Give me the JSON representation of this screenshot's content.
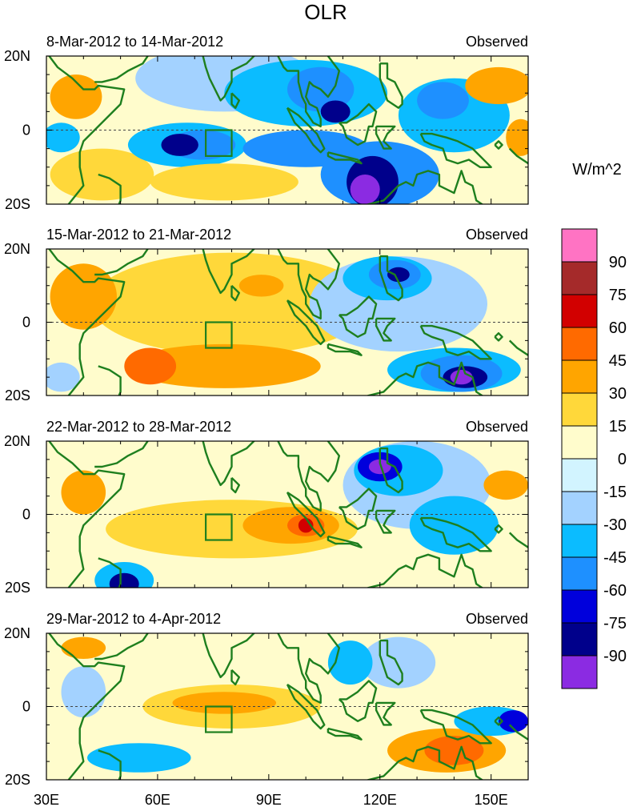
{
  "chart_data": {
    "type": "heatmap",
    "title": "OLR",
    "colorbar": {
      "unit_label": "W/m^2",
      "levels": [
        "90",
        "75",
        "60",
        "45",
        "30",
        "15",
        "0",
        "-15",
        "-30",
        "-45",
        "-60",
        "-75",
        "-90"
      ],
      "colors": [
        "#ff73c3",
        "#a52a2a",
        "#d20000",
        "#ff6a00",
        "#ffa500",
        "#ffd83a",
        "#fffccc",
        "#d2f4ff",
        "#a3d2ff",
        "#0bbcff",
        "#1e90ff",
        "#0000dc",
        "#00008b",
        "#8b2be2"
      ]
    },
    "xaxis": {
      "range": [
        30,
        160
      ],
      "ticks": [
        30,
        60,
        90,
        120,
        150
      ],
      "labels": [
        "30E",
        "60E",
        "90E",
        "120E",
        "150E"
      ]
    },
    "yaxis": {
      "range": [
        -20,
        20
      ],
      "ticks": [
        20,
        0,
        -20
      ],
      "labels": [
        "20N",
        "0",
        "20S"
      ]
    },
    "panels": [
      {
        "period": "8-Mar-2012 to 14-Mar-2012",
        "tag": "Observed",
        "anomalies": [
          {
            "lon": 38,
            "lat": 9,
            "rx": 7,
            "ry": 6,
            "value": 30
          },
          {
            "lon": 34,
            "lat": -2,
            "rx": 5,
            "ry": 4,
            "value": -30
          },
          {
            "lon": 45,
            "lat": -12,
            "rx": 14,
            "ry": 7,
            "value": 15
          },
          {
            "lon": 78,
            "lat": 14,
            "rx": 24,
            "ry": 9,
            "value": -15
          },
          {
            "lon": 68,
            "lat": -4,
            "rx": 16,
            "ry": 6,
            "value": -30
          },
          {
            "lon": 72,
            "lat": -4,
            "rx": 9,
            "ry": 4,
            "value": -45
          },
          {
            "lon": 66,
            "lat": -4,
            "rx": 5,
            "ry": 3,
            "value": -75
          },
          {
            "lon": 78,
            "lat": -14,
            "rx": 20,
            "ry": 5,
            "value": 15
          },
          {
            "lon": 100,
            "lat": 10,
            "rx": 22,
            "ry": 9,
            "value": -30
          },
          {
            "lon": 104,
            "lat": 11,
            "rx": 9,
            "ry": 6,
            "value": -45
          },
          {
            "lon": 108,
            "lat": 5,
            "rx": 4,
            "ry": 3,
            "value": -75
          },
          {
            "lon": 100,
            "lat": -5,
            "rx": 17,
            "ry": 5,
            "value": -45
          },
          {
            "lon": 120,
            "lat": -12,
            "rx": 16,
            "ry": 9,
            "value": -45
          },
          {
            "lon": 118,
            "lat": -14,
            "rx": 7,
            "ry": 7,
            "value": -75
          },
          {
            "lon": 116,
            "lat": -16,
            "rx": 4,
            "ry": 4,
            "value": -90
          },
          {
            "lon": 140,
            "lat": 4,
            "rx": 15,
            "ry": 10,
            "value": -30
          },
          {
            "lon": 137,
            "lat": 8,
            "rx": 7,
            "ry": 5,
            "value": -45
          },
          {
            "lon": 152,
            "lat": 12,
            "rx": 9,
            "ry": 5,
            "value": 30
          },
          {
            "lon": 158,
            "lat": -2,
            "rx": 4,
            "ry": 5,
            "value": 30
          }
        ]
      },
      {
        "period": "15-Mar-2012 to 21-Mar-2012",
        "tag": "Observed",
        "anomalies": [
          {
            "lon": 80,
            "lat": 5,
            "rx": 38,
            "ry": 14,
            "value": 15
          },
          {
            "lon": 40,
            "lat": 7,
            "rx": 9,
            "ry": 9,
            "value": 30
          },
          {
            "lon": 34,
            "lat": -15,
            "rx": 5,
            "ry": 4,
            "value": -15
          },
          {
            "lon": 78,
            "lat": -12,
            "rx": 26,
            "ry": 6,
            "value": 30
          },
          {
            "lon": 58,
            "lat": -12,
            "rx": 7,
            "ry": 5,
            "value": 45
          },
          {
            "lon": 88,
            "lat": 10,
            "rx": 6,
            "ry": 3,
            "value": 30
          },
          {
            "lon": 125,
            "lat": 5,
            "rx": 24,
            "ry": 13,
            "value": -15
          },
          {
            "lon": 122,
            "lat": 12,
            "rx": 12,
            "ry": 6,
            "value": -30
          },
          {
            "lon": 124,
            "lat": 13,
            "rx": 7,
            "ry": 4,
            "value": -45
          },
          {
            "lon": 125,
            "lat": 13,
            "rx": 3,
            "ry": 2,
            "value": -75
          },
          {
            "lon": 140,
            "lat": -13,
            "rx": 18,
            "ry": 6,
            "value": -30
          },
          {
            "lon": 142,
            "lat": -14,
            "rx": 11,
            "ry": 5,
            "value": -45
          },
          {
            "lon": 143,
            "lat": -15,
            "rx": 6,
            "ry": 3,
            "value": -75
          },
          {
            "lon": 142,
            "lat": -15,
            "rx": 3,
            "ry": 2,
            "value": -90
          }
        ]
      },
      {
        "period": "22-Mar-2012 to 28-Mar-2012",
        "tag": "Observed",
        "anomalies": [
          {
            "lon": 80,
            "lat": -4,
            "rx": 34,
            "ry": 8,
            "value": 15
          },
          {
            "lon": 96,
            "lat": -3,
            "rx": 13,
            "ry": 5,
            "value": 30
          },
          {
            "lon": 100,
            "lat": -3,
            "rx": 5,
            "ry": 3,
            "value": 45
          },
          {
            "lon": 100,
            "lat": -3,
            "rx": 2,
            "ry": 2,
            "value": 60
          },
          {
            "lon": 40,
            "lat": 6,
            "rx": 6,
            "ry": 6,
            "value": 30
          },
          {
            "lon": 51,
            "lat": -18,
            "rx": 8,
            "ry": 5,
            "value": -30
          },
          {
            "lon": 51,
            "lat": -19,
            "rx": 4,
            "ry": 3,
            "value": -75
          },
          {
            "lon": 130,
            "lat": 8,
            "rx": 20,
            "ry": 12,
            "value": -15
          },
          {
            "lon": 125,
            "lat": 12,
            "rx": 12,
            "ry": 7,
            "value": -30
          },
          {
            "lon": 120,
            "lat": 13,
            "rx": 6,
            "ry": 4,
            "value": -60
          },
          {
            "lon": 120,
            "lat": 13,
            "rx": 3,
            "ry": 2,
            "value": -90
          },
          {
            "lon": 140,
            "lat": -3,
            "rx": 12,
            "ry": 8,
            "value": -30
          },
          {
            "lon": 154,
            "lat": 8,
            "rx": 6,
            "ry": 4,
            "value": 30
          }
        ]
      },
      {
        "period": "29-Mar-2012 to 4-Apr-2012",
        "tag": "Observed",
        "anomalies": [
          {
            "lon": 80,
            "lat": 0,
            "rx": 24,
            "ry": 6,
            "value": 15
          },
          {
            "lon": 78,
            "lat": 1,
            "rx": 14,
            "ry": 3,
            "value": 30
          },
          {
            "lon": 138,
            "lat": -12,
            "rx": 16,
            "ry": 6,
            "value": 30
          },
          {
            "lon": 140,
            "lat": -12,
            "rx": 8,
            "ry": 4,
            "value": 45
          },
          {
            "lon": 40,
            "lat": 4,
            "rx": 6,
            "ry": 7,
            "value": -15
          },
          {
            "lon": 55,
            "lat": -14,
            "rx": 14,
            "ry": 4,
            "value": -30
          },
          {
            "lon": 125,
            "lat": 12,
            "rx": 10,
            "ry": 7,
            "value": -15
          },
          {
            "lon": 112,
            "lat": 12,
            "rx": 6,
            "ry": 6,
            "value": -30
          },
          {
            "lon": 150,
            "lat": -4,
            "rx": 10,
            "ry": 4,
            "value": -30
          },
          {
            "lon": 156,
            "lat": -4,
            "rx": 4,
            "ry": 3,
            "value": -60
          },
          {
            "lon": 40,
            "lat": 16,
            "rx": 6,
            "ry": 3,
            "value": 30
          }
        ]
      }
    ],
    "box": {
      "lon_min": 73,
      "lon_max": 80,
      "lat_min": -7,
      "lat_max": 0
    }
  }
}
